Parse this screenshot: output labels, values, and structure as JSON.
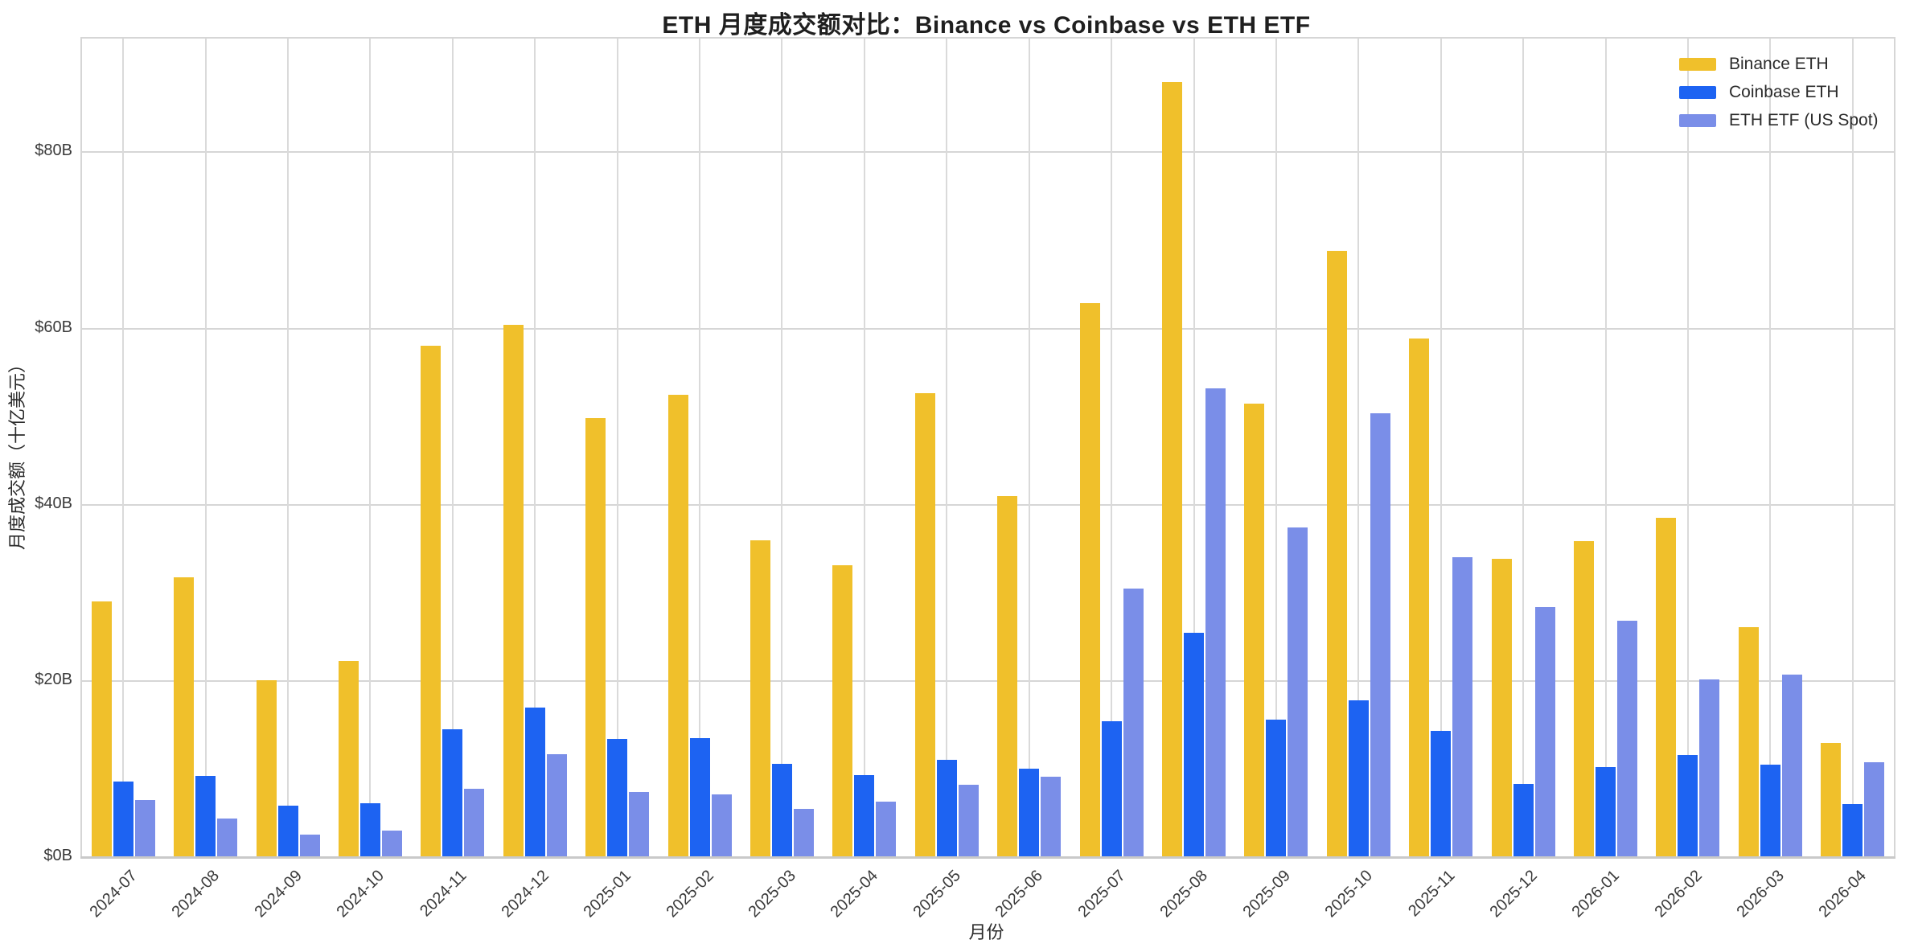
{
  "title": "ETH 月度成交额对比：Binance vs Coinbase vs ETH ETF",
  "chart_data": {
    "type": "bar",
    "title": "ETH 月度成交额对比：Binance vs Coinbase vs ETH ETF",
    "xlabel": "月份",
    "ylabel": "月度成交额（十亿美元）",
    "categories": [
      "2024-07",
      "2024-08",
      "2024-09",
      "2024-10",
      "2024-11",
      "2024-12",
      "2025-01",
      "2025-02",
      "2025-03",
      "2025-04",
      "2025-05",
      "2025-06",
      "2025-07",
      "2025-08",
      "2025-09",
      "2025-10",
      "2025-11",
      "2025-12",
      "2026-01",
      "2026-02",
      "2026-03",
      "2026-04"
    ],
    "series": [
      {
        "name": "Binance ETH",
        "color": "#F0C02B",
        "values": [
          29.0,
          31.8,
          20.1,
          22.3,
          58.0,
          60.4,
          49.8,
          52.5,
          36.0,
          33.1,
          52.7,
          41.0,
          62.9,
          88.0,
          51.5,
          68.8,
          58.9,
          33.9,
          35.9,
          38.5,
          26.1,
          13.0
        ]
      },
      {
        "name": "Coinbase ETH",
        "color": "#1D63F2",
        "values": [
          8.6,
          9.2,
          5.8,
          6.1,
          14.5,
          17.0,
          13.4,
          13.5,
          10.6,
          9.3,
          11.0,
          10.0,
          15.4,
          25.5,
          15.6,
          17.8,
          14.3,
          8.3,
          10.2,
          11.6,
          10.5,
          6.0
        ]
      },
      {
        "name": "ETH ETF (US Spot)",
        "color": "#7A8EE8",
        "values": [
          6.5,
          4.4,
          2.6,
          3.0,
          7.8,
          11.7,
          7.4,
          7.1,
          5.5,
          6.3,
          8.2,
          9.1,
          30.5,
          53.2,
          37.4,
          50.4,
          34.0,
          28.4,
          26.8,
          20.2,
          20.7,
          10.8
        ]
      }
    ],
    "yticks": [
      {
        "value": 0,
        "label": "$0B"
      },
      {
        "value": 20,
        "label": "$20B"
      },
      {
        "value": 40,
        "label": "$40B"
      },
      {
        "value": 60,
        "label": "$60B"
      },
      {
        "value": 80,
        "label": "$80B"
      }
    ],
    "ylim": [
      0,
      92.9
    ],
    "grid": true,
    "legend_position": "upper right"
  }
}
